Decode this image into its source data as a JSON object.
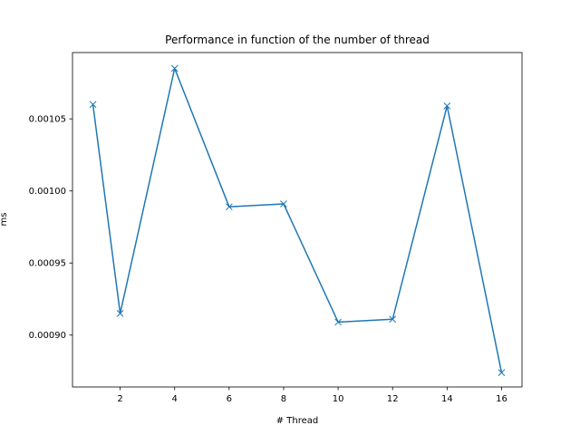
{
  "chart_data": {
    "type": "line",
    "title": "Performance in function of the number of thread",
    "xlabel": "# Thread",
    "ylabel": "ms",
    "xlim": [
      0.25,
      16.75
    ],
    "ylim": [
      0.000864,
      0.001096
    ],
    "x_ticks": [
      2,
      4,
      6,
      8,
      10,
      12,
      14,
      16
    ],
    "x_tick_labels": [
      "2",
      "4",
      "6",
      "8",
      "10",
      "12",
      "14",
      "16"
    ],
    "y_ticks": [
      0.0009,
      0.00095,
      0.001,
      0.00105
    ],
    "y_tick_labels": [
      "0.00090",
      "0.00095",
      "0.00100",
      "0.00105"
    ],
    "grid": false,
    "color": "#1f77b4",
    "marker": "x",
    "series": [
      {
        "x": [
          1,
          2,
          4,
          6,
          8,
          10,
          12,
          14,
          16
        ],
        "values": [
          0.00106,
          0.000915,
          0.001085,
          0.000989,
          0.000991,
          0.000909,
          0.000911,
          0.001059,
          0.000874
        ]
      }
    ]
  }
}
